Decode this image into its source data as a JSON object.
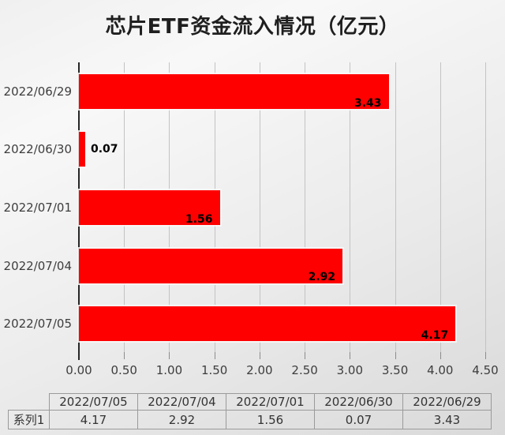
{
  "title": "芯片ETF资金流入情况（亿元）",
  "colors": {
    "bar": "#ff0000",
    "axis_line": "#262626",
    "gridline": "#c3c3c3",
    "tick": "#8c8c8c",
    "text": "#3d3d3d",
    "data_label": "#000000",
    "table_border": "#9a9a9a"
  },
  "chart_data": {
    "type": "bar",
    "orientation": "horizontal",
    "title": "芯片ETF资金流入情况（亿元）",
    "series_name": "系列1",
    "categories": [
      "2022/06/29",
      "2022/06/30",
      "2022/07/01",
      "2022/07/04",
      "2022/07/05"
    ],
    "values": [
      3.43,
      0.07,
      1.56,
      2.92,
      4.17
    ],
    "value_labels": [
      "3.43",
      "0.07",
      "1.56",
      "2.92",
      "4.17"
    ],
    "xlabel": "",
    "ylabel": "",
    "xlim": [
      0,
      4.5
    ],
    "x_tick_step": 0.5,
    "x_tick_labels": [
      "0.00",
      "0.50",
      "1.00",
      "1.50",
      "2.00",
      "2.50",
      "3.00",
      "3.50",
      "4.00",
      "4.50"
    ],
    "grid": true,
    "legend_position": "none"
  },
  "data_table": {
    "columns": [
      "2022/07/05",
      "2022/07/04",
      "2022/07/01",
      "2022/06/30",
      "2022/06/29"
    ],
    "rows": [
      {
        "label": "系列1",
        "values": [
          "4.17",
          "2.92",
          "1.56",
          "0.07",
          "3.43"
        ]
      }
    ]
  }
}
